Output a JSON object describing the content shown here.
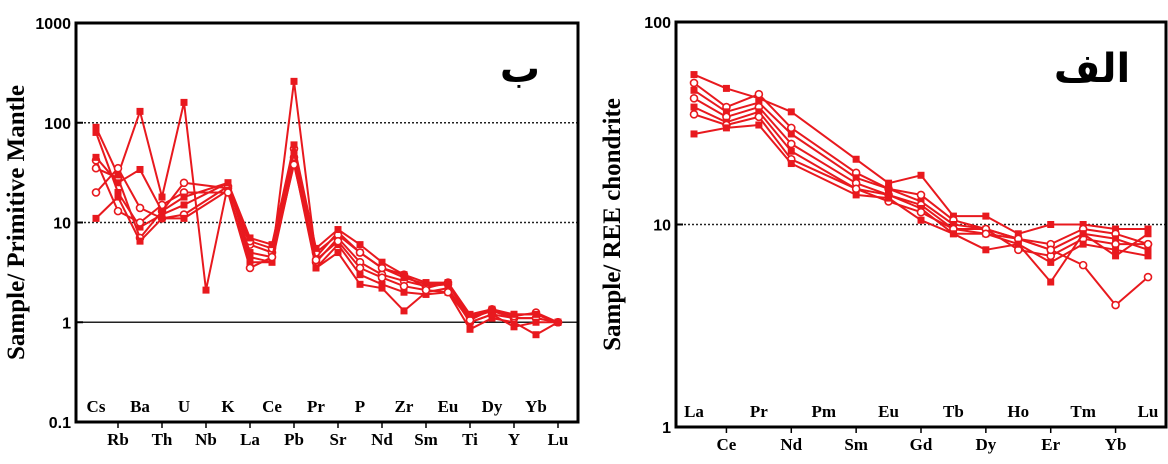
{
  "chart_data": [
    {
      "type": "line",
      "panel_label": "ب",
      "ylabel": "Sample/ Primitive Mantle",
      "yscale": "log",
      "ylim": [
        0.1,
        1000
      ],
      "yticks": [
        "0.1",
        "1",
        "10",
        "100",
        "1000"
      ],
      "categories": [
        "Cs",
        "Rb",
        "Ba",
        "Th",
        "U",
        "Nb",
        "K",
        "La",
        "Ce",
        "Pb",
        "Pr",
        "Sr",
        "P",
        "Nd",
        "Zr",
        "Sm",
        "Eu",
        "Ti",
        "Dy",
        "Y",
        "Yb",
        "Lu"
      ],
      "reference_lines": [
        1,
        10,
        100
      ],
      "color": "#e8191e",
      "series": [
        {
          "values": [
            80,
            20,
            9,
            12,
            15,
            null,
            25,
            4.5,
            4,
            40,
            3.5,
            6,
            3,
            2.4,
            2,
            1.9,
            2,
            0.85,
            1.1,
            1.0,
            0.75,
            1.0
          ]
        },
        {
          "values": [
            35,
            28,
            7,
            13,
            25,
            null,
            22,
            6,
            5,
            55,
            4,
            7,
            4,
            3,
            2.6,
            2.3,
            2.4,
            1.1,
            1.3,
            1.1,
            1.1,
            1.0
          ]
        },
        {
          "values": [
            90,
            30,
            130,
            18,
            160,
            2.1,
            24,
            5,
            4.5,
            260,
            4.5,
            8,
            5,
            3.5,
            2.8,
            2.4,
            2.4,
            1.15,
            1.3,
            1.2,
            1.2,
            1.0
          ]
        },
        {
          "values": [
            20,
            35,
            14,
            11,
            12,
            null,
            23,
            6.5,
            5.5,
            45,
            5,
            7.5,
            5,
            3.5,
            3,
            2.2,
            2.5,
            1.0,
            1.2,
            1.1,
            1.1,
            1.0
          ]
        },
        {
          "values": [
            11,
            18,
            6.5,
            11,
            11,
            null,
            21,
            4,
            4,
            50,
            3.5,
            5,
            2.4,
            2.2,
            1.3,
            2.0,
            2.2,
            1.0,
            1.2,
            0.9,
            1.0,
            1.0
          ]
        },
        {
          "values": [
            42,
            13,
            10,
            15,
            20,
            null,
            20,
            3.5,
            4.5,
            38,
            4.2,
            6.5,
            3.5,
            2.8,
            2.3,
            2.1,
            2.0,
            1.05,
            1.35,
            1.15,
            1.25,
            1.0
          ]
        },
        {
          "values": [
            45,
            25,
            34,
            13,
            18,
            null,
            25,
            7,
            6,
            60,
            5.5,
            8.5,
            6,
            4,
            3,
            2.5,
            2.5,
            1.2,
            1.35,
            1.2,
            1.2,
            1.0
          ]
        }
      ]
    },
    {
      "type": "line",
      "panel_label": "الف",
      "ylabel": "Sample/ REE chondrite",
      "yscale": "log",
      "ylim": [
        1,
        100
      ],
      "yticks": [
        "1",
        "10",
        "100"
      ],
      "categories": [
        "La",
        "Ce",
        "Pr",
        "Nd",
        "Pm",
        "Sm",
        "Eu",
        "Gd",
        "Tb",
        "Dy",
        "Ho",
        "Er",
        "Tm",
        "Yb",
        "Lu"
      ],
      "reference_lines": [
        10
      ],
      "color": "#e8191e",
      "series": [
        {
          "values": [
            55,
            47,
            42,
            36,
            null,
            21,
            16,
            17.5,
            11,
            11,
            9,
            10,
            10,
            9.5,
            9.5
          ]
        },
        {
          "values": [
            50,
            38,
            44,
            30,
            null,
            18,
            15,
            14,
            10.5,
            9.5,
            8.5,
            8,
            9.5,
            9,
            8
          ]
        },
        {
          "values": [
            46,
            36,
            40,
            28,
            null,
            17,
            15,
            13,
            10,
            9.5,
            8.5,
            7.5,
            9,
            8.5,
            7.5
          ]
        },
        {
          "values": [
            42,
            34,
            38,
            25,
            null,
            16,
            14,
            12.5,
            9.5,
            9.5,
            7.5,
            7,
            8.5,
            8,
            8
          ]
        },
        {
          "values": [
            38,
            32,
            36,
            23,
            null,
            15,
            14,
            12,
            9,
            9,
            8,
            6.5,
            8,
            7.5,
            7
          ]
        },
        {
          "values": [
            35,
            31,
            34,
            21,
            null,
            15,
            13,
            11.5,
            9.5,
            9,
            8.5,
            7.5,
            6.3,
            4,
            5.5
          ]
        },
        {
          "values": [
            28,
            30,
            31,
            20,
            null,
            14,
            13.5,
            10.5,
            9,
            7.5,
            8,
            5.2,
            9,
            7,
            9
          ]
        }
      ]
    }
  ]
}
